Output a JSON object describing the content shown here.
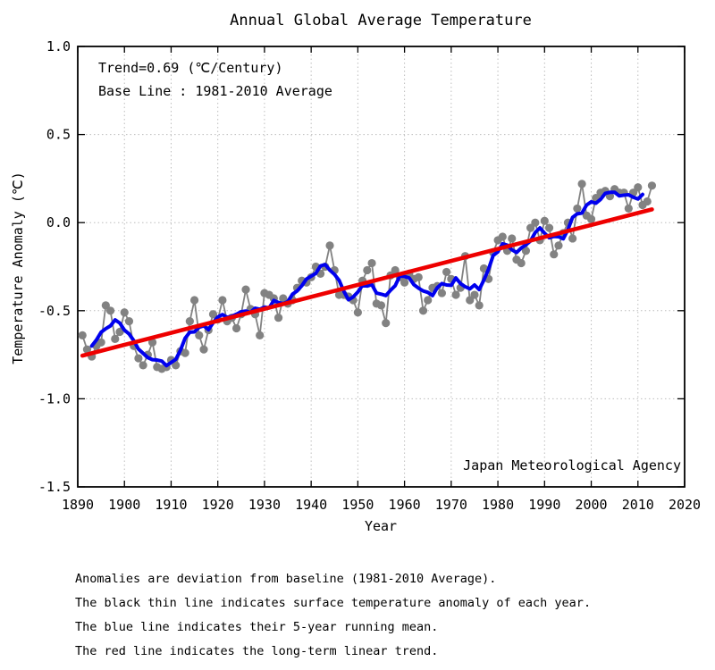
{
  "chart": {
    "title": "Annual Global Average Temperature",
    "xlabel": "Year",
    "ylabel": "Temperature Anomaly (℃)",
    "annotations": {
      "trend": "Trend=0.69 (℃/Century)",
      "baseline": "Base Line : 1981-2010 Average"
    },
    "agency": "Japan Meteorological Agency",
    "colors": {
      "annual": "#828282",
      "running_mean": "#0000ee",
      "trend": "#ee0000",
      "grid": "#bdbdbd",
      "frame": "#000000"
    }
  },
  "caption": {
    "line1": "Anomalies are deviation from baseline (1981-2010 Average).",
    "line2": "The black thin line indicates surface temperature anomaly of each year.",
    "line3": "The blue line indicates their 5-year running mean.",
    "line4": "The red line indicates the long-term linear trend."
  },
  "chart_data": {
    "type": "line",
    "title": "Annual Global Average Temperature",
    "xlabel": "Year",
    "ylabel": "Temperature Anomaly (℃)",
    "xlim": [
      1890,
      2020
    ],
    "ylim": [
      -1.5,
      1.0
    ],
    "x_ticks": [
      1890,
      1900,
      1910,
      1920,
      1930,
      1940,
      1950,
      1960,
      1970,
      1980,
      1990,
      2000,
      2010,
      2020
    ],
    "y_ticks": [
      1.0,
      0.5,
      0.0,
      -0.5,
      -1.0,
      -1.5
    ],
    "y_tick_labels": [
      "1.0",
      "0.5",
      "0.0",
      "-0.5",
      "-1.0",
      "-1.5"
    ],
    "grid": true,
    "legend_position": "none",
    "series": [
      {
        "name": "annual-anomaly",
        "style": "gray dots connected by thin line",
        "start_year": 1891,
        "values": [
          -0.64,
          -0.72,
          -0.76,
          -0.7,
          -0.68,
          -0.47,
          -0.5,
          -0.66,
          -0.62,
          -0.51,
          -0.56,
          -0.7,
          -0.77,
          -0.81,
          -0.75,
          -0.68,
          -0.82,
          -0.83,
          -0.82,
          -0.78,
          -0.81,
          -0.73,
          -0.74,
          -0.56,
          -0.44,
          -0.64,
          -0.72,
          -0.61,
          -0.52,
          -0.55,
          -0.44,
          -0.56,
          -0.54,
          -0.6,
          -0.52,
          -0.38,
          -0.49,
          -0.52,
          -0.64,
          -0.4,
          -0.41,
          -0.43,
          -0.54,
          -0.43,
          -0.46,
          -0.44,
          -0.37,
          -0.33,
          -0.34,
          -0.31,
          -0.25,
          -0.29,
          -0.25,
          -0.13,
          -0.27,
          -0.41,
          -0.41,
          -0.42,
          -0.44,
          -0.51,
          -0.33,
          -0.27,
          -0.23,
          -0.46,
          -0.47,
          -0.57,
          -0.3,
          -0.27,
          -0.31,
          -0.34,
          -0.29,
          -0.32,
          -0.31,
          -0.5,
          -0.44,
          -0.37,
          -0.36,
          -0.4,
          -0.28,
          -0.32,
          -0.41,
          -0.37,
          -0.19,
          -0.44,
          -0.41,
          -0.47,
          -0.26,
          -0.32,
          -0.17,
          -0.1,
          -0.08,
          -0.16,
          -0.09,
          -0.21,
          -0.23,
          -0.16,
          -0.03,
          0.0,
          -0.1,
          0.01,
          -0.03,
          -0.18,
          -0.13,
          -0.06,
          0.0,
          -0.09,
          0.08,
          0.22,
          0.04,
          0.02,
          0.14,
          0.17,
          0.18,
          0.15,
          0.19,
          0.17,
          0.17,
          0.08,
          0.17,
          0.2,
          0.1,
          0.12,
          0.21
        ]
      },
      {
        "name": "5-year-running-mean",
        "style": "thick blue line",
        "derived": "centered 5-year running mean of annual-anomaly (spans 1893-2011)"
      },
      {
        "name": "linear-trend",
        "style": "thick red straight line",
        "trend_per_century": 0.69,
        "points": [
          {
            "year": 1891,
            "value": -0.755
          },
          {
            "year": 2013,
            "value": 0.075
          }
        ]
      }
    ],
    "annotations": [
      "Trend=0.69 (℃/Century)",
      "Base Line : 1981-2010 Average",
      "Japan Meteorological Agency"
    ]
  }
}
